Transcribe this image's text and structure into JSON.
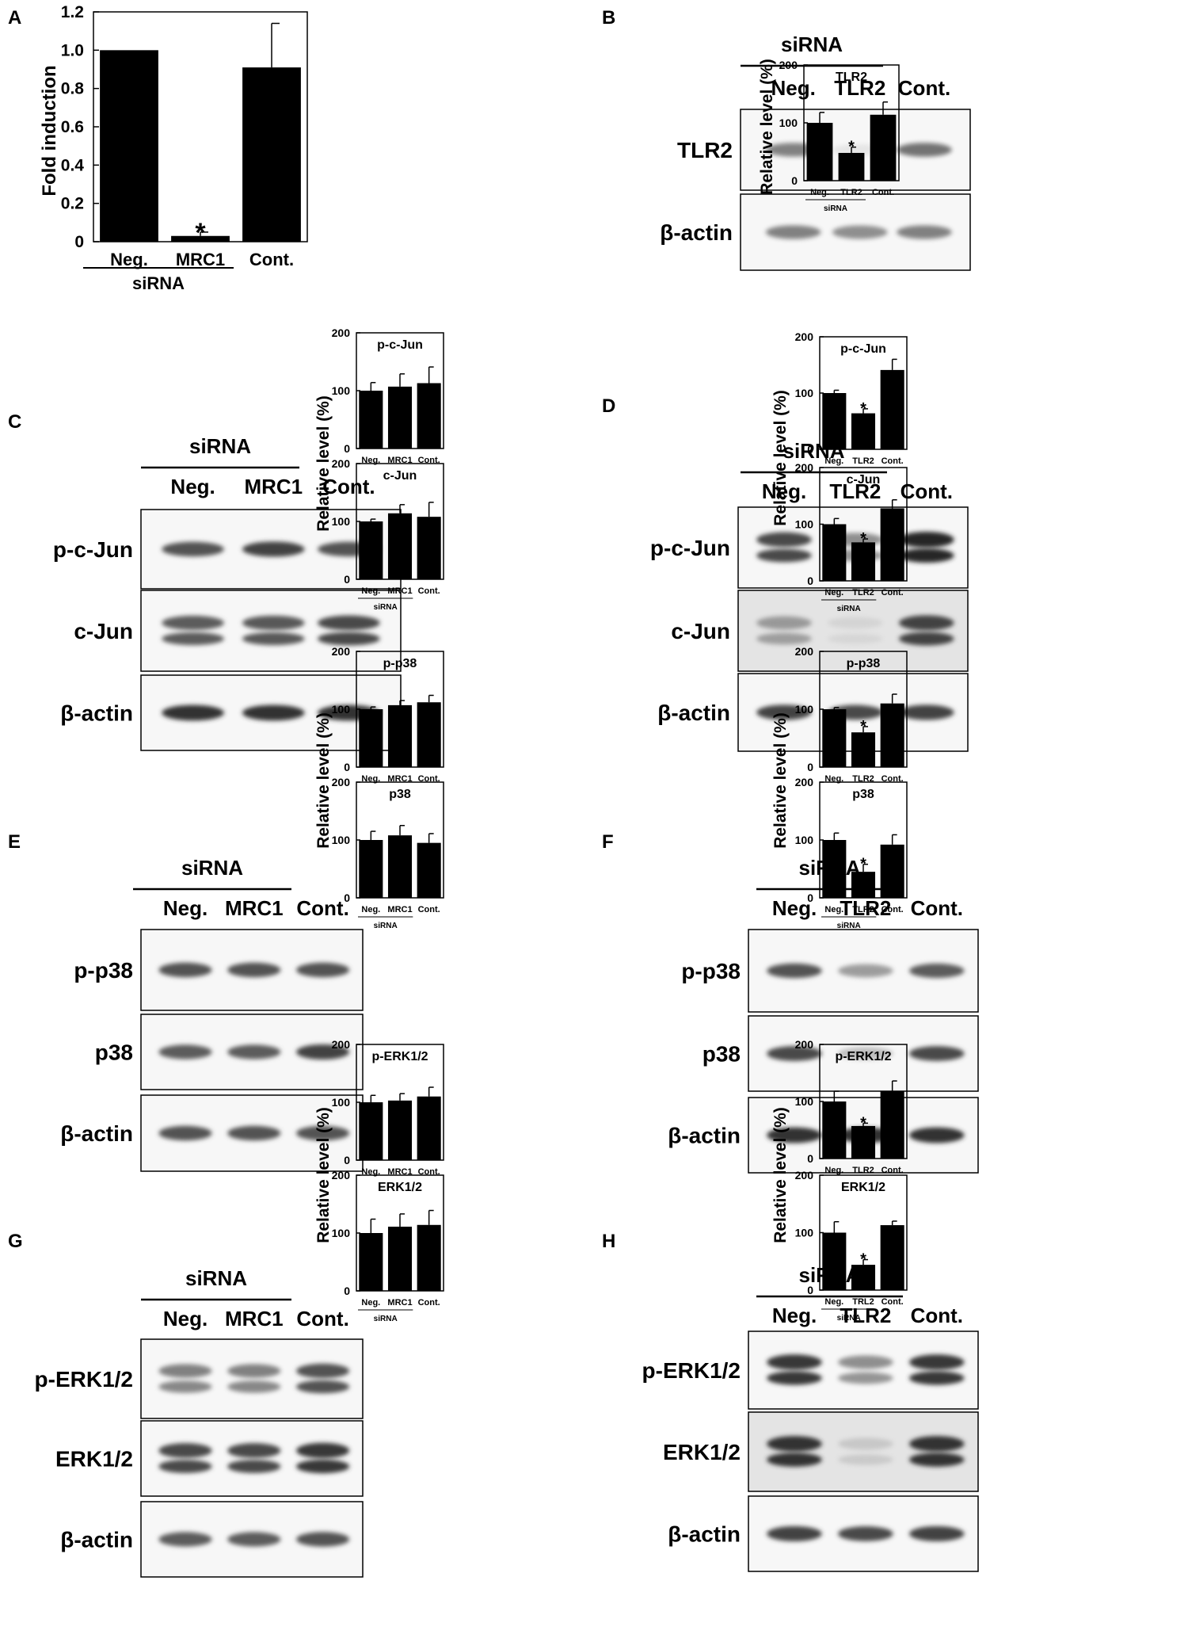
{
  "panels": [
    {
      "letter": "A"
    },
    {
      "letter": "B"
    },
    {
      "letter": "C"
    },
    {
      "letter": "D"
    },
    {
      "letter": "E"
    },
    {
      "letter": "F"
    },
    {
      "letter": "G"
    },
    {
      "letter": "H"
    }
  ],
  "blots": {
    "B": {
      "group": "siRNA",
      "lanes": [
        "Neg.",
        "TLR2",
        "Cont."
      ],
      "rows": [
        {
          "label": "TLR2",
          "bands": [
            0.55,
            0.04,
            0.6
          ],
          "double": false,
          "dark": false
        },
        {
          "label": "β-actin",
          "bands": [
            0.55,
            0.5,
            0.55
          ],
          "double": false,
          "dark": false
        }
      ]
    },
    "C": {
      "group": "siRNA",
      "lanes": [
        "Neg.",
        "MRC1",
        "Cont."
      ],
      "rows": [
        {
          "label": "p-c-Jun",
          "bands": [
            0.75,
            0.85,
            0.75
          ],
          "double": false,
          "dark": false
        },
        {
          "label": "c-Jun",
          "bands": [
            0.7,
            0.72,
            0.8
          ],
          "double": true,
          "dark": false
        },
        {
          "label": "β-actin",
          "bands": [
            0.95,
            0.95,
            0.95
          ],
          "double": false,
          "dark": false
        }
      ]
    },
    "D": {
      "group": "siRNA",
      "lanes": [
        "Neg.",
        "TLR2",
        "Cont."
      ],
      "rows": [
        {
          "label": "p-c-Jun",
          "bands": [
            0.8,
            0.5,
            1.0
          ],
          "double": true,
          "dark": false
        },
        {
          "label": "c-Jun",
          "bands": [
            0.45,
            0.1,
            0.85
          ],
          "double": true,
          "dark": true
        },
        {
          "label": "β-actin",
          "bands": [
            0.85,
            0.8,
            0.85
          ],
          "double": false,
          "dark": false
        }
      ]
    },
    "E": {
      "group": "siRNA",
      "lanes": [
        "Neg.",
        "MRC1",
        "Cont."
      ],
      "rows": [
        {
          "label": "p-p38",
          "bands": [
            0.75,
            0.75,
            0.75
          ],
          "double": false,
          "dark": false
        },
        {
          "label": "p38",
          "bands": [
            0.7,
            0.7,
            0.85
          ],
          "double": false,
          "dark": false
        },
        {
          "label": "β-actin",
          "bands": [
            0.75,
            0.75,
            0.75
          ],
          "double": false,
          "dark": false
        }
      ]
    },
    "F": {
      "group": "siRNA",
      "lanes": [
        "Neg.",
        "TLR2",
        "Cont."
      ],
      "rows": [
        {
          "label": "p-p38",
          "bands": [
            0.75,
            0.45,
            0.7
          ],
          "double": false,
          "dark": false
        },
        {
          "label": "p38",
          "bands": [
            0.8,
            0.3,
            0.8
          ],
          "double": false,
          "dark": false
        },
        {
          "label": "β-actin",
          "bands": [
            0.95,
            0.95,
            0.95
          ],
          "double": false,
          "dark": false
        }
      ]
    },
    "G": {
      "group": "siRNA",
      "lanes": [
        "Neg.",
        "MRC1",
        "Cont."
      ],
      "rows": [
        {
          "label": "p-ERK1/2",
          "bands": [
            0.55,
            0.55,
            0.75
          ],
          "double": true,
          "dark": false
        },
        {
          "label": "ERK1/2",
          "bands": [
            0.8,
            0.8,
            0.9
          ],
          "double": true,
          "dark": false
        },
        {
          "label": "β-actin",
          "bands": [
            0.7,
            0.7,
            0.75
          ],
          "double": false,
          "dark": false
        }
      ]
    },
    "H": {
      "group": "siRNA",
      "lanes": [
        "Neg.",
        "TLR2",
        "Cont."
      ],
      "rows": [
        {
          "label": "p-ERK1/2",
          "bands": [
            0.9,
            0.5,
            0.9
          ],
          "double": true,
          "dark": false
        },
        {
          "label": "ERK1/2",
          "bands": [
            0.95,
            0.2,
            0.95
          ],
          "double": true,
          "dark": true
        },
        {
          "label": "β-actin",
          "bands": [
            0.85,
            0.8,
            0.85
          ],
          "double": false,
          "dark": false
        }
      ]
    }
  },
  "chart_data": [
    {
      "panel": "A",
      "type": "bar",
      "title": "",
      "ylabel": "Fold induction",
      "xgroup": "siRNA",
      "categories": [
        "Neg.",
        "MRC1",
        "Cont."
      ],
      "values": [
        1.0,
        0.03,
        0.91
      ],
      "errors": [
        0.0,
        0.02,
        0.23
      ],
      "significant": [
        false,
        true,
        false
      ],
      "ylim": [
        0,
        1.2
      ],
      "yticks": [
        "0",
        "0.2",
        "0.4",
        "0.6",
        "0.8",
        "1.0",
        "1.2"
      ]
    },
    {
      "panel": "B",
      "type": "bar",
      "title": "TLR2",
      "ylabel": "Relative level (%)",
      "xgroup": "siRNA",
      "categories": [
        "Neg.",
        "TLR2",
        "Cont."
      ],
      "values": [
        100,
        48,
        114
      ],
      "errors": [
        18,
        10,
        22
      ],
      "significant": [
        false,
        true,
        false
      ],
      "ylim": [
        0,
        200
      ],
      "yticks": [
        "0",
        "100",
        "200"
      ]
    },
    {
      "panel": "C",
      "type": "bar",
      "title": "p-c-Jun",
      "ylabel": "Relative level (%)",
      "xgroup": "siRNA",
      "categories": [
        "Neg.",
        "MRC1",
        "Cont."
      ],
      "values": [
        100,
        107,
        113
      ],
      "errors": [
        14,
        22,
        28
      ],
      "significant": [
        false,
        false,
        false
      ],
      "ylim": [
        0,
        200
      ],
      "yticks": [
        "0",
        "100",
        "200"
      ]
    },
    {
      "panel": "C",
      "type": "bar",
      "title": "c-Jun",
      "ylabel": "Relative level (%)",
      "xgroup": "siRNA",
      "categories": [
        "Neg.",
        "MRC1",
        "Cont."
      ],
      "values": [
        100,
        114,
        108
      ],
      "errors": [
        4,
        15,
        25
      ],
      "significant": [
        false,
        false,
        false
      ],
      "ylim": [
        0,
        200
      ],
      "yticks": [
        "0",
        "100",
        "200"
      ]
    },
    {
      "panel": "D",
      "type": "bar",
      "title": "p-c-Jun",
      "ylabel": "Relative level (%)",
      "xgroup": "siRNA",
      "categories": [
        "Neg.",
        "TLR2",
        "Cont."
      ],
      "values": [
        100,
        64,
        141
      ],
      "errors": [
        5,
        8,
        19
      ],
      "significant": [
        false,
        true,
        false
      ],
      "ylim": [
        0,
        200
      ],
      "yticks": [
        "0",
        "100",
        "200"
      ]
    },
    {
      "panel": "D",
      "type": "bar",
      "title": "c-Jun",
      "ylabel": "Relative level (%)",
      "xgroup": "siRNA",
      "categories": [
        "Neg.",
        "TLR2",
        "Cont."
      ],
      "values": [
        100,
        68,
        128
      ],
      "errors": [
        10,
        6,
        15
      ],
      "significant": [
        false,
        true,
        false
      ],
      "ylim": [
        0,
        200
      ],
      "yticks": [
        "0",
        "100",
        "200"
      ]
    },
    {
      "panel": "E",
      "type": "bar",
      "title": "p-p38",
      "ylabel": "Relative level (%)",
      "xgroup": "siRNA",
      "categories": [
        "Neg.",
        "MRC1",
        "Cont."
      ],
      "values": [
        100,
        107,
        112
      ],
      "errors": [
        4,
        8,
        12
      ],
      "significant": [
        false,
        false,
        false
      ],
      "ylim": [
        0,
        200
      ],
      "yticks": [
        "0",
        "100",
        "200"
      ]
    },
    {
      "panel": "E",
      "type": "bar",
      "title": "p38",
      "ylabel": "Relative level (%)",
      "xgroup": "siRNA",
      "categories": [
        "Neg.",
        "MRC1",
        "Cont."
      ],
      "values": [
        100,
        108,
        95
      ],
      "errors": [
        15,
        17,
        16
      ],
      "significant": [
        false,
        false,
        false
      ],
      "ylim": [
        0,
        200
      ],
      "yticks": [
        "0",
        "100",
        "200"
      ]
    },
    {
      "panel": "F",
      "type": "bar",
      "title": "p-p38",
      "ylabel": "Relative level (%)",
      "xgroup": "siRNA",
      "categories": [
        "Neg.",
        "TLR2",
        "Cont."
      ],
      "values": [
        100,
        60,
        110
      ],
      "errors": [
        3,
        10,
        16
      ],
      "significant": [
        false,
        true,
        false
      ],
      "ylim": [
        0,
        200
      ],
      "yticks": [
        "0",
        "100",
        "200"
      ]
    },
    {
      "panel": "F",
      "type": "bar",
      "title": "p38",
      "ylabel": "Relative level (%)",
      "xgroup": "siRNA",
      "categories": [
        "Neg.",
        "TLR2",
        "Cont."
      ],
      "values": [
        100,
        45,
        92
      ],
      "errors": [
        12,
        13,
        17
      ],
      "significant": [
        false,
        true,
        false
      ],
      "ylim": [
        0,
        200
      ],
      "yticks": [
        "0",
        "100",
        "200"
      ]
    },
    {
      "panel": "G",
      "type": "bar",
      "title": "p-ERK1/2",
      "ylabel": "Relative level (%)",
      "xgroup": "siRNA",
      "categories": [
        "Neg.",
        "MRC1",
        "Cont."
      ],
      "values": [
        100,
        103,
        110
      ],
      "errors": [
        12,
        12,
        16
      ],
      "significant": [
        false,
        false,
        false
      ],
      "ylim": [
        0,
        200
      ],
      "yticks": [
        "0",
        "100",
        "200"
      ]
    },
    {
      "panel": "G",
      "type": "bar",
      "title": "ERK1/2",
      "ylabel": "Relative level (%)",
      "xgroup": "siRNA",
      "categories": [
        "Neg.",
        "MRC1",
        "Cont."
      ],
      "values": [
        100,
        111,
        114
      ],
      "errors": [
        24,
        22,
        25
      ],
      "significant": [
        false,
        false,
        false
      ],
      "ylim": [
        0,
        200
      ],
      "yticks": [
        "0",
        "100",
        "200"
      ]
    },
    {
      "panel": "H",
      "type": "bar",
      "title": "p-ERK1/2",
      "ylabel": "Relative level (%)",
      "xgroup": "siRNA",
      "categories": [
        "Neg.",
        "TLR2",
        "Cont."
      ],
      "values": [
        100,
        57,
        118
      ],
      "errors": [
        18,
        5,
        18
      ],
      "significant": [
        false,
        true,
        false
      ],
      "ylim": [
        0,
        200
      ],
      "yticks": [
        "0",
        "100",
        "200"
      ]
    },
    {
      "panel": "H",
      "type": "bar",
      "title": "ERK1/2",
      "ylabel": "Relative level (%)",
      "xgroup": "siRNA",
      "categories": [
        "Neg.",
        "TRL2",
        "Cont."
      ],
      "values": [
        100,
        44,
        113
      ],
      "errors": [
        19,
        9,
        7
      ],
      "significant": [
        false,
        true,
        false
      ],
      "ylim": [
        0,
        200
      ],
      "yticks": [
        "0",
        "100",
        "200"
      ]
    }
  ]
}
